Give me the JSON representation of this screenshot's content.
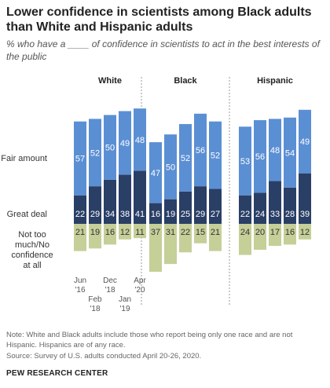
{
  "title": "Lower confidence in scientists among Black adults than White and Hispanic adults",
  "subtitle": "% who have a ____ of confidence in scientists to act in the best interests of the public",
  "note": "Note: White and Black adults include those who report being only one race and are not Hispanic. Hispanics are of any race.",
  "source": "Source: Survey of U.S. adults conducted April 20-26, 2020.",
  "org": "PEW RESEARCH CENTER",
  "colors": {
    "great_deal": "#2a3f66",
    "fair_amount": "#5b8fd4",
    "not_too_much": "#c5cf98"
  },
  "chart_data": {
    "type": "bar",
    "stacked": "diverging",
    "row_labels": {
      "fair": "Fair amount",
      "great": "Great deal",
      "not": [
        "Not too",
        "much/No",
        "confidence",
        "at all"
      ]
    },
    "x_labels": [
      {
        "top": "Jun",
        "bottom": "'16"
      },
      {
        "top": "Feb",
        "bottom": "'18"
      },
      {
        "top": "Dec",
        "bottom": "'18"
      },
      {
        "top": "Jan",
        "bottom": "'19"
      },
      {
        "top": "Apr",
        "bottom": "'20"
      }
    ],
    "groups": [
      {
        "name": "White",
        "great_deal": [
          22,
          29,
          34,
          38,
          41
        ],
        "fair_amount": [
          57,
          52,
          50,
          49,
          48
        ],
        "not_too_much": [
          21,
          19,
          16,
          12,
          11
        ]
      },
      {
        "name": "Black",
        "great_deal": [
          16,
          19,
          25,
          29,
          27
        ],
        "fair_amount": [
          47,
          50,
          52,
          56,
          52
        ],
        "not_too_much": [
          37,
          31,
          22,
          15,
          21
        ]
      },
      {
        "name": "Hispanic",
        "great_deal": [
          22,
          24,
          33,
          28,
          39
        ],
        "fair_amount": [
          53,
          56,
          48,
          54,
          49
        ],
        "not_too_much": [
          24,
          20,
          17,
          16,
          12
        ]
      }
    ]
  }
}
